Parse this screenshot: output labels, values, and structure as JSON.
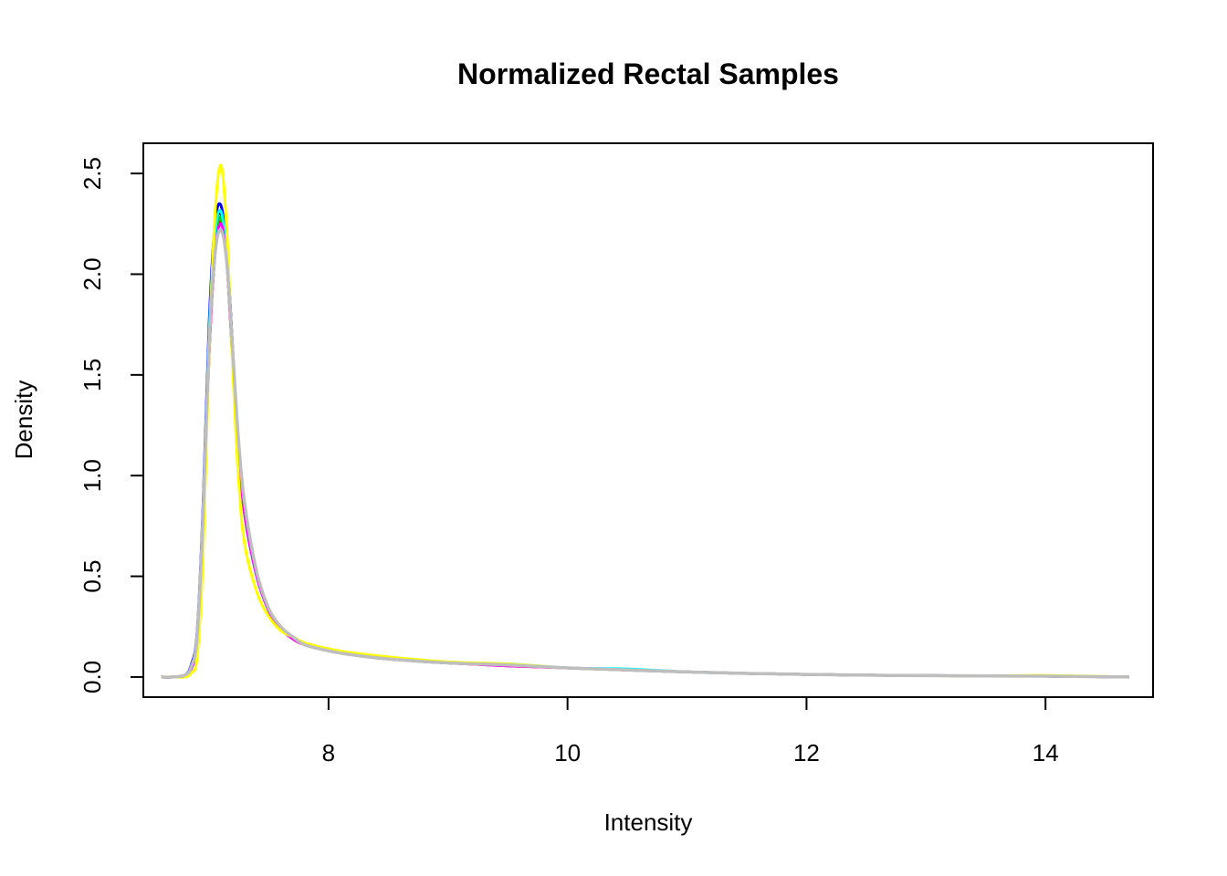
{
  "chart_data": {
    "type": "line",
    "title": "Normalized Rectal Samples",
    "xlabel": "Intensity",
    "ylabel": "Density",
    "xlim": [
      6.45,
      14.9
    ],
    "ylim": [
      -0.1,
      2.65
    ],
    "x_ticks": [
      8,
      10,
      12,
      14
    ],
    "x_tick_labels": [
      "8",
      "10",
      "12",
      "14"
    ],
    "y_ticks": [
      0.0,
      0.5,
      1.0,
      1.5,
      2.0,
      2.5
    ],
    "y_tick_labels": [
      "0.0",
      "0.5",
      "1.0",
      "1.5",
      "2.0",
      "2.5"
    ],
    "grid": false,
    "legend": "none",
    "x": [
      6.6,
      6.7,
      6.8,
      6.85,
      6.9,
      6.95,
      7.0,
      7.05,
      7.1,
      7.15,
      7.2,
      7.25,
      7.3,
      7.4,
      7.5,
      7.6,
      7.7,
      7.8,
      8.0,
      8.2,
      8.5,
      9.0,
      9.5,
      10.0,
      10.5,
      11.0,
      11.5,
      12.0,
      12.5,
      13.0,
      13.5,
      14.0,
      14.7
    ],
    "series": [
      {
        "color": "#000000",
        "values": [
          0.0,
          0.0,
          0.01,
          0.05,
          0.2,
          0.8,
          1.7,
          2.2,
          2.3,
          2.1,
          1.6,
          1.1,
          0.8,
          0.5,
          0.33,
          0.24,
          0.2,
          0.16,
          0.13,
          0.11,
          0.09,
          0.07,
          0.06,
          0.045,
          0.035,
          0.025,
          0.018,
          0.013,
          0.009,
          0.007,
          0.005,
          0.004,
          0.0
        ]
      },
      {
        "color": "#FF0000",
        "values": [
          0.0,
          0.0,
          0.01,
          0.04,
          0.18,
          0.75,
          1.6,
          2.1,
          2.26,
          2.05,
          1.55,
          1.1,
          0.8,
          0.5,
          0.33,
          0.24,
          0.19,
          0.16,
          0.13,
          0.11,
          0.09,
          0.07,
          0.055,
          0.045,
          0.035,
          0.025,
          0.018,
          0.013,
          0.009,
          0.007,
          0.005,
          0.004,
          0.0
        ]
      },
      {
        "color": "#00CD00",
        "values": [
          0.0,
          0.0,
          0.01,
          0.05,
          0.2,
          0.8,
          1.65,
          2.15,
          2.28,
          2.05,
          1.55,
          1.1,
          0.8,
          0.5,
          0.33,
          0.24,
          0.2,
          0.16,
          0.13,
          0.11,
          0.09,
          0.07,
          0.06,
          0.045,
          0.035,
          0.025,
          0.018,
          0.013,
          0.009,
          0.007,
          0.005,
          0.004,
          0.0
        ]
      },
      {
        "color": "#0000FF",
        "values": [
          0.0,
          0.0,
          0.01,
          0.06,
          0.22,
          0.85,
          1.75,
          2.25,
          2.34,
          2.1,
          1.6,
          1.12,
          0.8,
          0.5,
          0.33,
          0.24,
          0.2,
          0.16,
          0.13,
          0.11,
          0.09,
          0.07,
          0.06,
          0.045,
          0.035,
          0.025,
          0.018,
          0.013,
          0.009,
          0.007,
          0.005,
          0.004,
          0.0
        ]
      },
      {
        "color": "#00FFFF",
        "values": [
          0.0,
          0.0,
          0.01,
          0.05,
          0.2,
          0.8,
          1.7,
          2.2,
          2.31,
          2.08,
          1.58,
          1.1,
          0.8,
          0.5,
          0.33,
          0.24,
          0.2,
          0.16,
          0.13,
          0.11,
          0.09,
          0.07,
          0.065,
          0.045,
          0.04,
          0.025,
          0.018,
          0.013,
          0.009,
          0.007,
          0.005,
          0.004,
          0.0
        ]
      },
      {
        "color": "#FF00FF",
        "values": [
          0.0,
          0.0,
          0.01,
          0.04,
          0.18,
          0.75,
          1.6,
          2.1,
          2.25,
          2.05,
          1.55,
          1.1,
          0.8,
          0.5,
          0.33,
          0.24,
          0.19,
          0.16,
          0.13,
          0.11,
          0.09,
          0.07,
          0.055,
          0.045,
          0.035,
          0.025,
          0.018,
          0.013,
          0.009,
          0.007,
          0.005,
          0.004,
          0.0
        ]
      },
      {
        "color": "#FFFF00",
        "values": [
          0.0,
          0.0,
          0.0,
          0.02,
          0.1,
          0.6,
          1.6,
          2.3,
          2.54,
          2.2,
          1.5,
          0.95,
          0.65,
          0.42,
          0.3,
          0.23,
          0.2,
          0.17,
          0.14,
          0.12,
          0.1,
          0.075,
          0.065,
          0.045,
          0.035,
          0.025,
          0.018,
          0.013,
          0.009,
          0.007,
          0.005,
          0.008,
          0.0
        ]
      },
      {
        "color": "#BEBEBE",
        "values": [
          0.0,
          0.0,
          0.01,
          0.05,
          0.2,
          0.8,
          1.65,
          2.1,
          2.22,
          2.05,
          1.6,
          1.15,
          0.85,
          0.52,
          0.34,
          0.25,
          0.2,
          0.16,
          0.13,
          0.11,
          0.09,
          0.07,
          0.06,
          0.045,
          0.035,
          0.025,
          0.018,
          0.013,
          0.009,
          0.007,
          0.005,
          0.004,
          0.0
        ]
      }
    ]
  }
}
